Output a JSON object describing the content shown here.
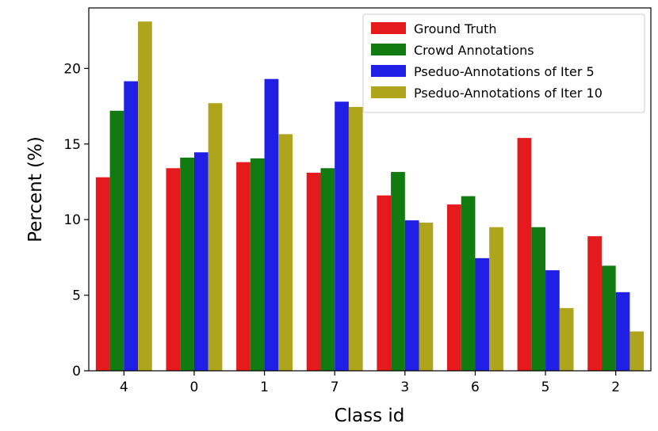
{
  "chart_data": {
    "type": "bar",
    "xlabel": "Class id",
    "ylabel": "Percent (%)",
    "ylim": [
      0,
      24
    ],
    "yticks": [
      0,
      5,
      10,
      15,
      20
    ],
    "grid": false,
    "legend_position": "top-right",
    "categories": [
      "4",
      "0",
      "1",
      "7",
      "3",
      "6",
      "5",
      "2"
    ],
    "series": [
      {
        "name": "Ground Truth",
        "color": "#e41a1c",
        "values": [
          12.8,
          13.4,
          13.8,
          13.1,
          11.6,
          11.0,
          15.4,
          8.9
        ]
      },
      {
        "name": "Crowd Annotations",
        "color": "#117a11",
        "values": [
          17.2,
          14.1,
          14.05,
          13.4,
          13.15,
          11.55,
          9.5,
          6.95
        ]
      },
      {
        "name": "Pseduo-Annotations of Iter 5",
        "color": "#1f1fe6",
        "values": [
          19.15,
          14.45,
          19.3,
          17.8,
          9.95,
          7.45,
          6.65,
          5.2
        ]
      },
      {
        "name": "Pseduo-Annotations of Iter 10",
        "color": "#aea51d",
        "values": [
          23.1,
          17.7,
          15.65,
          17.45,
          9.8,
          9.5,
          4.15,
          2.6
        ]
      }
    ]
  }
}
